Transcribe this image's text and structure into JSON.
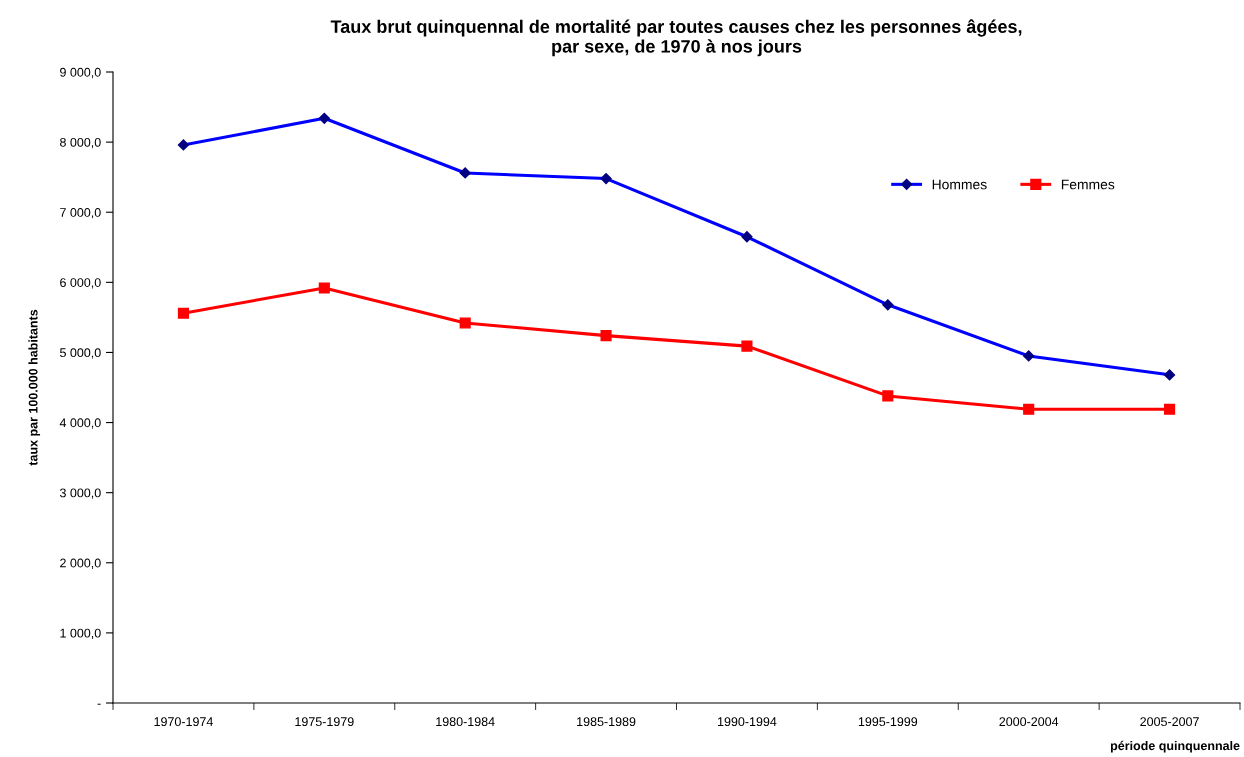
{
  "chart_data": {
    "type": "line",
    "title": "Taux brut quinquennal de mortalité par toutes causes chez les personnes âgées,\npar sexe, de 1970 à nos jours",
    "xlabel": "période quinquennale",
    "ylabel": "taux par 100.000 habitants",
    "categories": [
      "1970-1974",
      "1975-1979",
      "1980-1984",
      "1985-1989",
      "1990-1994",
      "1995-1999",
      "2000-2004",
      "2005-2007"
    ],
    "series": [
      {
        "name": "Hommes",
        "color": "#0000ff",
        "marker": "diamond",
        "values": [
          7960,
          8340,
          7560,
          7480,
          6650,
          5680,
          4950,
          4680
        ]
      },
      {
        "name": "Femmes",
        "color": "#ff0000",
        "marker": "square",
        "values": [
          5560,
          5920,
          5420,
          5240,
          5090,
          4380,
          4190,
          4190
        ]
      }
    ],
    "ylim": [
      0,
      9000
    ],
    "yticks": [
      {
        "value": 0,
        "label": "-"
      },
      {
        "value": 1000,
        "label": "1 000,0"
      },
      {
        "value": 2000,
        "label": "2 000,0"
      },
      {
        "value": 3000,
        "label": "3 000,0"
      },
      {
        "value": 4000,
        "label": "4 000,0"
      },
      {
        "value": 5000,
        "label": "5 000,0"
      },
      {
        "value": 6000,
        "label": "6 000,0"
      },
      {
        "value": 7000,
        "label": "7 000,0"
      },
      {
        "value": 8000,
        "label": "8 000,0"
      },
      {
        "value": 9000,
        "label": "9 000,0"
      }
    ],
    "grid": false,
    "legend": "top right",
    "line_style": "solid"
  }
}
